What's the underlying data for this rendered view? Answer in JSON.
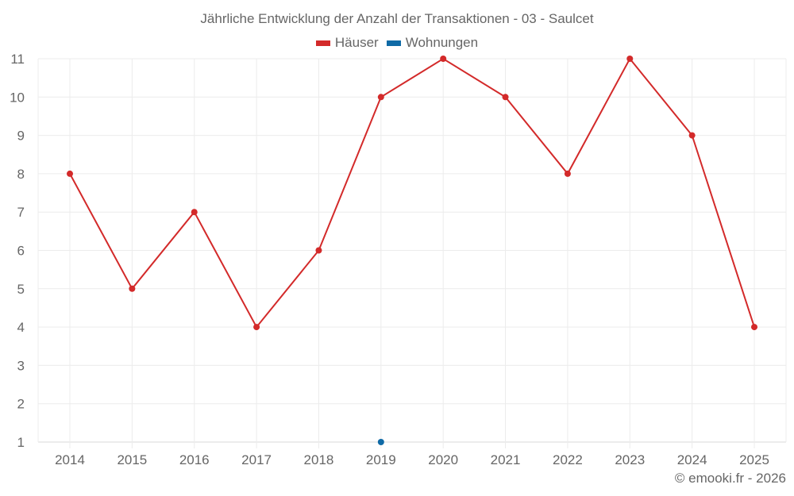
{
  "chart": {
    "title": "Jährliche Entwicklung der Anzahl der Transaktionen - 03 - Saulcet",
    "legend": [
      {
        "label": "Häuser",
        "color": "#d32a2a"
      },
      {
        "label": "Wohnungen",
        "color": "#0f6aa6"
      }
    ],
    "credit": "© emooki.fr - 2026"
  },
  "chart_data": {
    "type": "line",
    "title": "Jährliche Entwicklung der Anzahl der Transaktionen - 03 - Saulcet",
    "xlabel": "",
    "ylabel": "",
    "categories": [
      "2014",
      "2015",
      "2016",
      "2017",
      "2018",
      "2019",
      "2020",
      "2021",
      "2022",
      "2023",
      "2024",
      "2025"
    ],
    "series": [
      {
        "name": "Häuser",
        "color": "#d32a2a",
        "values": [
          8,
          5,
          7,
          4,
          6,
          10,
          11,
          10,
          8,
          11,
          9,
          4
        ]
      },
      {
        "name": "Wohnungen",
        "color": "#0f6aa6",
        "values": [
          null,
          null,
          null,
          null,
          null,
          1,
          null,
          null,
          null,
          null,
          null,
          null
        ]
      }
    ],
    "ylim": [
      1,
      11
    ],
    "yticks": [
      1,
      2,
      3,
      4,
      5,
      6,
      7,
      8,
      9,
      10,
      11
    ],
    "grid": true,
    "legend_position": "top"
  }
}
